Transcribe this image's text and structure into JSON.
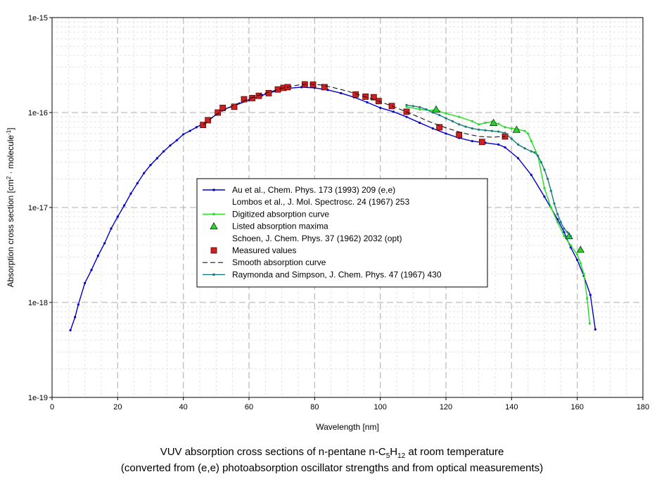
{
  "caption": {
    "line1_pre": "VUV absorption cross sections of n-pentane n-C",
    "line1_sub1": "5",
    "line1_mid": "H",
    "line1_sub2": "12",
    "line1_post": " at room temperature",
    "line2": "(converted from (e,e) photoabsorption oscillator strengths and from optical measurements)"
  },
  "chart_data": {
    "type": "line",
    "xlabel": "Wavelength [nm]",
    "ylabel_pre": "Absorption cross section [cm",
    "ylabel_sup1": "2",
    "ylabel_mid": " · molecule",
    "ylabel_sup2": "-1",
    "ylabel_post": "]",
    "xlim": [
      0,
      180
    ],
    "ylim": [
      1e-19,
      1e-15
    ],
    "yscale": "log",
    "xticks": [
      "0",
      "20",
      "40",
      "60",
      "80",
      "100",
      "120",
      "140",
      "160",
      "180"
    ],
    "yticks": [
      "1e-19",
      "1e-18",
      "1e-17",
      "1e-16",
      "1e-15"
    ],
    "grid": true,
    "legend_position": "center-left",
    "legend": [
      "Au et al., Chem. Phys. 173 (1993) 209 (e,e)",
      "Lombos et al., J. Mol. Spectrosc. 24 (1967) 253",
      "Digitized absorption curve",
      "Listed absorption maxima",
      "Schoen, J. Chem. Phys. 37 (1962) 2032 (opt)",
      "Measured values",
      "Smooth absorption curve",
      "Raymonda and Simpson, J. Chem. Phys. 47 (1967) 430"
    ],
    "series": [
      {
        "name": "Au et al., Chem. Phys. 173 (1993) 209 (e,e)",
        "color": "#0000cc",
        "style": "line-dots",
        "x": [
          5.6,
          7,
          8,
          10,
          12,
          14,
          16,
          18,
          20,
          22,
          24,
          26,
          28,
          30,
          32,
          34,
          36,
          38,
          40,
          42,
          44,
          46,
          48,
          50,
          52,
          56,
          60,
          64,
          68,
          72,
          76,
          80,
          84,
          88,
          92,
          96,
          100,
          104,
          108,
          112,
          116,
          120,
          124,
          128,
          132,
          136,
          138,
          142,
          146,
          150,
          154,
          156,
          158,
          160,
          162,
          164,
          165.5
        ],
        "y": [
          5.1e-19,
          7e-19,
          9.5e-19,
          1.6e-18,
          2.2e-18,
          3.1e-18,
          4.2e-18,
          6e-18,
          8e-18,
          1.05e-17,
          1.4e-17,
          1.8e-17,
          2.3e-17,
          2.8e-17,
          3.3e-17,
          3.9e-17,
          4.5e-17,
          5.1e-17,
          5.9e-17,
          6.4e-17,
          7e-17,
          7.6e-17,
          8.5e-17,
          9.5e-17,
          1.07e-16,
          1.2e-16,
          1.35e-16,
          1.52e-16,
          1.68e-16,
          1.8e-16,
          1.85e-16,
          1.82e-16,
          1.73e-16,
          1.6e-16,
          1.45e-16,
          1.28e-16,
          1.12e-16,
          1.02e-16,
          9e-17,
          7.8e-17,
          6.8e-17,
          6e-17,
          5.4e-17,
          5e-17,
          4.8e-17,
          4.6e-17,
          4.3e-17,
          3.3e-17,
          2.2e-17,
          1.3e-17,
          7.5e-18,
          5.5e-18,
          3.8e-18,
          2.8e-18,
          1.9e-18,
          1.2e-18,
          5.2e-19
        ]
      },
      {
        "name": "Digitized absorption curve",
        "color": "#22dd22",
        "style": "line-dots",
        "x": [
          108,
          112,
          116,
          118,
          120,
          124,
          128,
          130,
          132,
          134,
          136,
          138,
          140,
          142,
          144,
          145,
          146,
          148,
          150,
          152,
          154,
          156,
          158,
          160,
          161,
          162,
          163,
          163.8
        ],
        "y": [
          1.15e-16,
          1.08e-16,
          1.05e-16,
          1.03e-16,
          9.8e-17,
          9e-17,
          8.1e-17,
          7.5e-17,
          7.8e-17,
          8e-17,
          7.6e-17,
          7e-17,
          6.8e-17,
          6.6e-17,
          6.4e-17,
          6e-17,
          5e-17,
          3.5e-17,
          1.6e-17,
          1e-17,
          7e-18,
          5e-18,
          4e-18,
          3.2e-18,
          2.6e-18,
          2e-18,
          1.1e-18,
          6e-19
        ]
      },
      {
        "name": "Listed absorption maxima",
        "color": "#33cc33",
        "style": "triangles",
        "x": [
          117,
          134.5,
          141.5,
          157.5,
          161
        ],
        "y": [
          1.08e-16,
          7.8e-17,
          6.6e-17,
          5e-18,
          3.6e-18
        ]
      },
      {
        "name": "Measured values",
        "color": "#cc2222",
        "style": "squares",
        "x": [
          46,
          47.5,
          50.5,
          52,
          55.5,
          58.5,
          61,
          63,
          66,
          68.8,
          70.5,
          71.8,
          77,
          79.5,
          83,
          92.5,
          95.5,
          98,
          99.5,
          103.5,
          108,
          118,
          124,
          131,
          138
        ],
        "y": [
          7.4e-17,
          8.3e-17,
          1e-16,
          1.12e-16,
          1.15e-16,
          1.38e-16,
          1.42e-16,
          1.5e-16,
          1.6e-16,
          1.75e-16,
          1.82e-16,
          1.85e-16,
          1.98e-16,
          1.97e-16,
          1.85e-16,
          1.55e-16,
          1.47e-16,
          1.45e-16,
          1.32e-16,
          1.17e-16,
          1.02e-16,
          7e-17,
          5.8e-17,
          4.9e-17,
          5.6e-17
        ]
      },
      {
        "name": "Smooth absorption curve",
        "color": "#000000",
        "style": "dashed",
        "x": [
          46,
          50,
          55,
          60,
          65,
          70,
          75,
          78,
          82,
          86,
          90,
          95,
          100,
          105,
          110,
          115,
          120,
          125,
          130,
          134,
          138
        ],
        "y": [
          7.4e-17,
          9.5e-17,
          1.18e-16,
          1.4e-16,
          1.6e-16,
          1.8e-16,
          1.95e-16,
          2e-16,
          1.95e-16,
          1.82e-16,
          1.68e-16,
          1.48e-16,
          1.3e-16,
          1.12e-16,
          9.5e-17,
          8e-17,
          6.9e-17,
          6.1e-17,
          5.6e-17,
          5.5e-17,
          5.6e-17
        ]
      },
      {
        "name": "Raymonda and Simpson, J. Chem. Phys. 47 (1967) 430",
        "color": "#1a7a7a",
        "style": "line-dots",
        "x": [
          108,
          110,
          112,
          114,
          116,
          118,
          120,
          122,
          124,
          126,
          128,
          130,
          132,
          134,
          136,
          138,
          140,
          142,
          144,
          146,
          147,
          148,
          149,
          150,
          151,
          152,
          153,
          154,
          155,
          156,
          157,
          158
        ],
        "y": [
          1.2e-16,
          1.17e-16,
          1.14e-16,
          1.08e-16,
          1e-16,
          9.4e-17,
          8.7e-17,
          8.1e-17,
          7.5e-17,
          7.1e-17,
          6.8e-17,
          6.6e-17,
          6.5e-17,
          6.4e-17,
          6.3e-17,
          6.1e-17,
          5.3e-17,
          4.6e-17,
          4.2e-17,
          3.9e-17,
          3.8e-17,
          3.5e-17,
          3e-17,
          2.5e-17,
          2e-17,
          1.5e-17,
          1.1e-17,
          8.5e-18,
          7e-18,
          6e-18,
          5.5e-18,
          5e-18
        ]
      }
    ]
  }
}
